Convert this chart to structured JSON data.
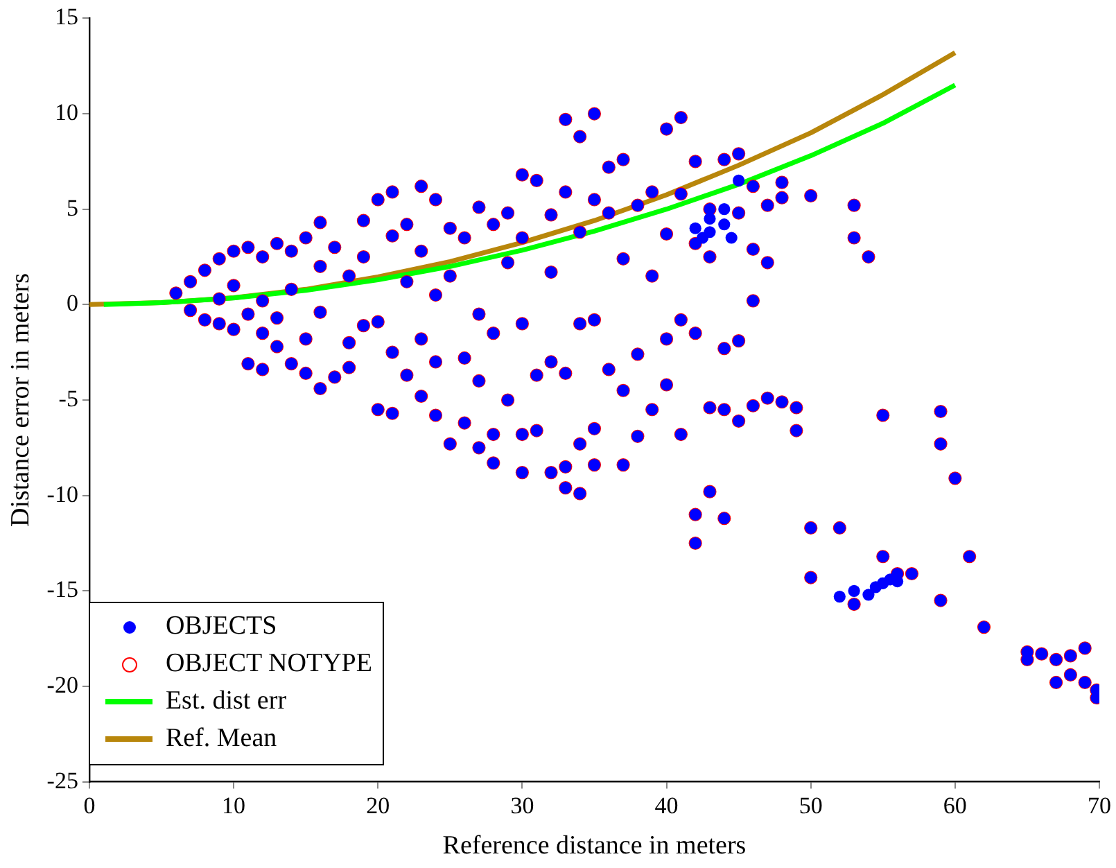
{
  "chart_data": {
    "type": "scatter",
    "xlabel": "Reference distance in meters",
    "ylabel": "Distance error in meters",
    "xlim": [
      0,
      70
    ],
    "ylim": [
      -25,
      15
    ],
    "xticks": [
      0,
      10,
      20,
      30,
      40,
      50,
      60,
      70
    ],
    "yticks": [
      -25,
      -20,
      -15,
      -10,
      -5,
      0,
      5,
      10,
      15
    ],
    "grid": false,
    "legend": "bottom left",
    "line_style": "solid",
    "series": [
      {
        "name": "OBJECTS",
        "marker": "circle",
        "color": "#0000ff",
        "x": [
          6,
          7,
          7,
          8,
          8,
          9,
          9,
          9,
          10,
          10,
          10,
          11,
          11,
          11,
          12,
          12,
          12,
          12,
          13,
          13,
          13,
          14,
          14,
          14,
          15,
          15,
          15,
          16,
          16,
          16,
          16,
          17,
          17,
          18,
          18,
          18,
          19,
          19,
          19,
          20,
          20,
          20,
          21,
          21,
          21,
          21,
          22,
          22,
          22,
          23,
          23,
          23,
          23,
          24,
          24,
          24,
          24,
          25,
          25,
          25,
          26,
          26,
          26,
          27,
          27,
          27,
          27,
          28,
          28,
          28,
          28,
          29,
          29,
          29,
          30,
          30,
          30,
          30,
          30,
          31,
          31,
          31,
          32,
          32,
          32,
          32,
          33,
          33,
          33,
          33,
          33,
          34,
          34,
          34,
          34,
          34,
          35,
          35,
          35,
          35,
          35,
          36,
          36,
          36,
          37,
          37,
          37,
          37,
          38,
          38,
          38,
          39,
          39,
          39,
          40,
          40,
          40,
          40,
          41,
          41,
          41,
          41,
          42,
          42,
          42,
          42,
          42,
          43,
          43,
          43,
          43,
          44,
          44,
          44,
          44,
          45,
          45,
          45,
          45,
          46,
          46,
          46,
          46,
          47,
          47,
          47,
          48,
          48,
          48,
          49,
          49,
          50,
          50,
          50,
          52,
          53,
          53,
          53,
          54,
          55,
          55,
          56,
          57,
          59,
          59,
          59,
          60,
          61,
          62,
          65,
          65,
          66,
          67,
          67,
          68,
          68,
          69,
          69,
          69.8,
          69.8,
          42,
          42.5,
          43,
          43,
          44,
          44,
          45,
          44.5,
          52,
          53,
          54,
          54.5,
          55,
          55.5,
          56
        ],
        "values": [
          0.6,
          1.2,
          -0.3,
          1.8,
          -0.8,
          2.4,
          0.3,
          -1,
          2.8,
          1,
          -1.3,
          3,
          -0.5,
          -3.1,
          2.5,
          0.2,
          -1.5,
          -3.4,
          3.2,
          -0.7,
          -2.2,
          2.8,
          0.8,
          -3.1,
          3.5,
          -1.8,
          -3.6,
          4.3,
          2,
          -0.4,
          -4.4,
          3,
          -3.8,
          1.5,
          -2,
          -3.3,
          4.4,
          2.5,
          -1.1,
          5.5,
          -0.9,
          -5.5,
          5.9,
          3.6,
          -2.5,
          -5.7,
          4.2,
          1.2,
          -3.7,
          6.2,
          2.8,
          -1.8,
          -4.8,
          5.5,
          0.5,
          -3,
          -5.8,
          4,
          1.5,
          -7.3,
          3.5,
          -2.8,
          -6.2,
          5.1,
          -0.5,
          -4,
          -7.5,
          4.2,
          -1.5,
          -6.8,
          -8.3,
          4.8,
          2.2,
          -5,
          6.8,
          3.5,
          -1,
          -6.8,
          -8.8,
          6.5,
          -3.7,
          -6.6,
          4.7,
          1.7,
          -3,
          -8.8,
          9.7,
          5.9,
          -3.6,
          -8.5,
          -9.6,
          8.8,
          3.8,
          -1,
          -7.3,
          -9.9,
          10,
          5.5,
          -0.8,
          -6.5,
          -8.4,
          7.2,
          4.8,
          -3.4,
          7.6,
          2.4,
          -4.5,
          -8.4,
          5.2,
          -2.6,
          -6.9,
          5.9,
          1.5,
          -5.5,
          9.2,
          3.7,
          -1.8,
          -4.2,
          9.8,
          5.8,
          -0.8,
          -6.8,
          7.5,
          3.2,
          -1.5,
          -11,
          -12.5,
          5,
          2.5,
          -5.4,
          -9.8,
          7.6,
          -2.3,
          -5.5,
          -11.2,
          7.9,
          4.8,
          -1.9,
          -6.1,
          6.2,
          2.9,
          0.2,
          -5.3,
          5.2,
          2.2,
          -4.9,
          6.4,
          5.6,
          -5.1,
          -5.4,
          -6.6,
          5.7,
          -11.7,
          -14.3,
          -11.7,
          5.2,
          3.5,
          -15.7,
          2.5,
          -13.2,
          -5.8,
          -14.1,
          -14.1,
          -5.6,
          -7.3,
          -15.5,
          -9.1,
          -13.2,
          -16.9,
          -18.6,
          -18.2,
          -18.3,
          -18.6,
          -19.8,
          -18.4,
          -19.4,
          -19.8,
          -18,
          -20.2,
          -20.6,
          4,
          3.5,
          4.5,
          3.8,
          4.2,
          5,
          6.5,
          3.5,
          -15.3,
          -15,
          -15.2,
          -14.8,
          -14.6,
          -14.4,
          -14.5
        ]
      },
      {
        "name": "OBJECT NOTYPE",
        "marker": "circle",
        "color": "#ff0000",
        "x": [
          6,
          7,
          7,
          8,
          8,
          9,
          9,
          9,
          10,
          10,
          10,
          11,
          11,
          11,
          12,
          12,
          12,
          12,
          13,
          13,
          13,
          14,
          14,
          14,
          15,
          15,
          15,
          16,
          16,
          16,
          16,
          17,
          17,
          18,
          18,
          18,
          19,
          19,
          19,
          20,
          20,
          20,
          21,
          21,
          21,
          21,
          22,
          22,
          22,
          23,
          23,
          23,
          23,
          24,
          24,
          24,
          24,
          25,
          25,
          25,
          26,
          26,
          26,
          27,
          27,
          27,
          27,
          28,
          28,
          28,
          28,
          29,
          29,
          29,
          30,
          30,
          30,
          30,
          30,
          31,
          31,
          31,
          32,
          32,
          32,
          32,
          33,
          33,
          33,
          33,
          33,
          34,
          34,
          34,
          34,
          34,
          35,
          35,
          35,
          35,
          35,
          36,
          36,
          36,
          37,
          37,
          37,
          37,
          38,
          38,
          38,
          39,
          39,
          39,
          40,
          40,
          40,
          40,
          41,
          41,
          41,
          41,
          42,
          42,
          42,
          42,
          42,
          43,
          43,
          43,
          43,
          44,
          44,
          44,
          44,
          45,
          45,
          45,
          45,
          46,
          46,
          46,
          46,
          47,
          47,
          47,
          48,
          48,
          48,
          49,
          49,
          50,
          50,
          50,
          52,
          53,
          53,
          53,
          54,
          55,
          55,
          56,
          57,
          59,
          59,
          59,
          60,
          61,
          62,
          65,
          65,
          66,
          67,
          67,
          68,
          68,
          69,
          69,
          69.8,
          69.8
        ],
        "values": [
          0.6,
          1.2,
          -0.3,
          1.8,
          -0.8,
          2.4,
          0.3,
          -1,
          2.8,
          1,
          -1.3,
          3,
          -0.5,
          -3.1,
          2.5,
          0.2,
          -1.5,
          -3.4,
          3.2,
          -0.7,
          -2.2,
          2.8,
          0.8,
          -3.1,
          3.5,
          -1.8,
          -3.6,
          4.3,
          2,
          -0.4,
          -4.4,
          3,
          -3.8,
          1.5,
          -2,
          -3.3,
          4.4,
          2.5,
          -1.1,
          5.5,
          -0.9,
          -5.5,
          5.9,
          3.6,
          -2.5,
          -5.7,
          4.2,
          1.2,
          -3.7,
          6.2,
          2.8,
          -1.8,
          -4.8,
          5.5,
          0.5,
          -3,
          -5.8,
          4,
          1.5,
          -7.3,
          3.5,
          -2.8,
          -6.2,
          5.1,
          -0.5,
          -4,
          -7.5,
          4.2,
          -1.5,
          -6.8,
          -8.3,
          4.8,
          2.2,
          -5,
          6.8,
          3.5,
          -1,
          -6.8,
          -8.8,
          6.5,
          -3.7,
          -6.6,
          4.7,
          1.7,
          -3,
          -8.8,
          9.7,
          5.9,
          -3.6,
          -8.5,
          -9.6,
          8.8,
          3.8,
          -1,
          -7.3,
          -9.9,
          10,
          5.5,
          -0.8,
          -6.5,
          -8.4,
          7.2,
          4.8,
          -3.4,
          7.6,
          2.4,
          -4.5,
          -8.4,
          5.2,
          -2.6,
          -6.9,
          5.9,
          1.5,
          -5.5,
          9.2,
          3.7,
          -1.8,
          -4.2,
          9.8,
          5.8,
          -0.8,
          -6.8,
          7.5,
          3.2,
          -1.5,
          -11,
          -12.5,
          5,
          2.5,
          -5.4,
          -9.8,
          7.6,
          -2.3,
          -5.5,
          -11.2,
          7.9,
          4.8,
          -1.9,
          -6.1,
          6.2,
          2.9,
          0.2,
          -5.3,
          5.2,
          2.2,
          -4.9,
          6.4,
          5.6,
          -5.1,
          -5.4,
          -6.6,
          5.7,
          -11.7,
          -14.3,
          -11.7,
          5.2,
          3.5,
          -15.7,
          2.5,
          -13.2,
          -5.8,
          -14.1,
          -14.1,
          -5.6,
          -7.3,
          -15.5,
          -9.1,
          -13.2,
          -16.9,
          -18.6,
          -18.2,
          -18.3,
          -18.6,
          -19.8,
          -18.4,
          -19.4,
          -19.8,
          -18,
          -20.2,
          -20.6
        ]
      },
      {
        "name": "Est. dist err",
        "type": "line",
        "marker": "none",
        "color": "#00ff00",
        "x": [
          1,
          5,
          10,
          15,
          20,
          25,
          30,
          35,
          40,
          45,
          50,
          55,
          60
        ],
        "values": [
          0,
          0.1,
          0.35,
          0.75,
          1.3,
          2,
          2.85,
          3.85,
          5,
          6.3,
          7.8,
          9.5,
          11.5
        ]
      },
      {
        "name": "Ref. Mean",
        "type": "line",
        "marker": "none",
        "color": "#b8860b",
        "x": [
          0,
          5,
          10,
          15,
          20,
          25,
          30,
          35,
          40,
          45,
          50,
          55,
          60
        ],
        "values": [
          0,
          0.1,
          0.36,
          0.8,
          1.45,
          2.25,
          3.25,
          4.4,
          5.75,
          7.3,
          9,
          11,
          13.2
        ]
      }
    ]
  }
}
